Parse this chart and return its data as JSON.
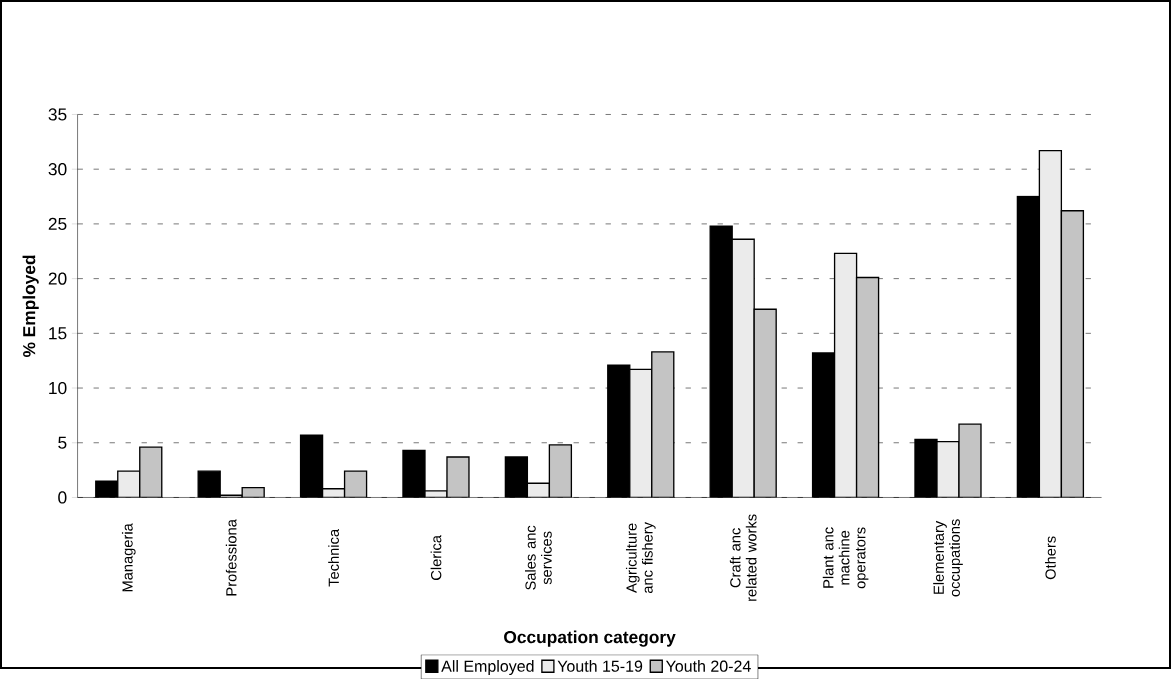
{
  "chart_data": {
    "type": "bar",
    "xlabel": "Occupation category",
    "ylabel": "% Employed",
    "categories": [
      "Manageria",
      "Professiona",
      "Technica",
      "Clerica",
      "Sales anc services",
      "Agriculture anc fishery",
      "Craft anc related works",
      "Plant anc machine operators",
      "Elementary occupations",
      "Others"
    ],
    "series": [
      {
        "name": "All Employed",
        "color": "#000000",
        "values": [
          1.5,
          2.4,
          5.7,
          4.3,
          3.7,
          12.1,
          24.8,
          13.2,
          5.3,
          27.5
        ]
      },
      {
        "name": "Youth 15-19",
        "color": "#ebebeb",
        "values": [
          2.4,
          0.2,
          0.8,
          0.6,
          1.3,
          11.7,
          23.6,
          22.3,
          5.1,
          31.7
        ]
      },
      {
        "name": "Youth 20-24",
        "color": "#c4c4c4",
        "values": [
          4.6,
          0.9,
          2.4,
          3.7,
          4.8,
          13.3,
          17.2,
          20.1,
          6.7,
          26.2
        ]
      }
    ],
    "ylim": [
      0,
      35
    ],
    "yticks": [
      0,
      5,
      10,
      15,
      20,
      25,
      30,
      35
    ],
    "grid": "y",
    "legend": "bottom"
  }
}
